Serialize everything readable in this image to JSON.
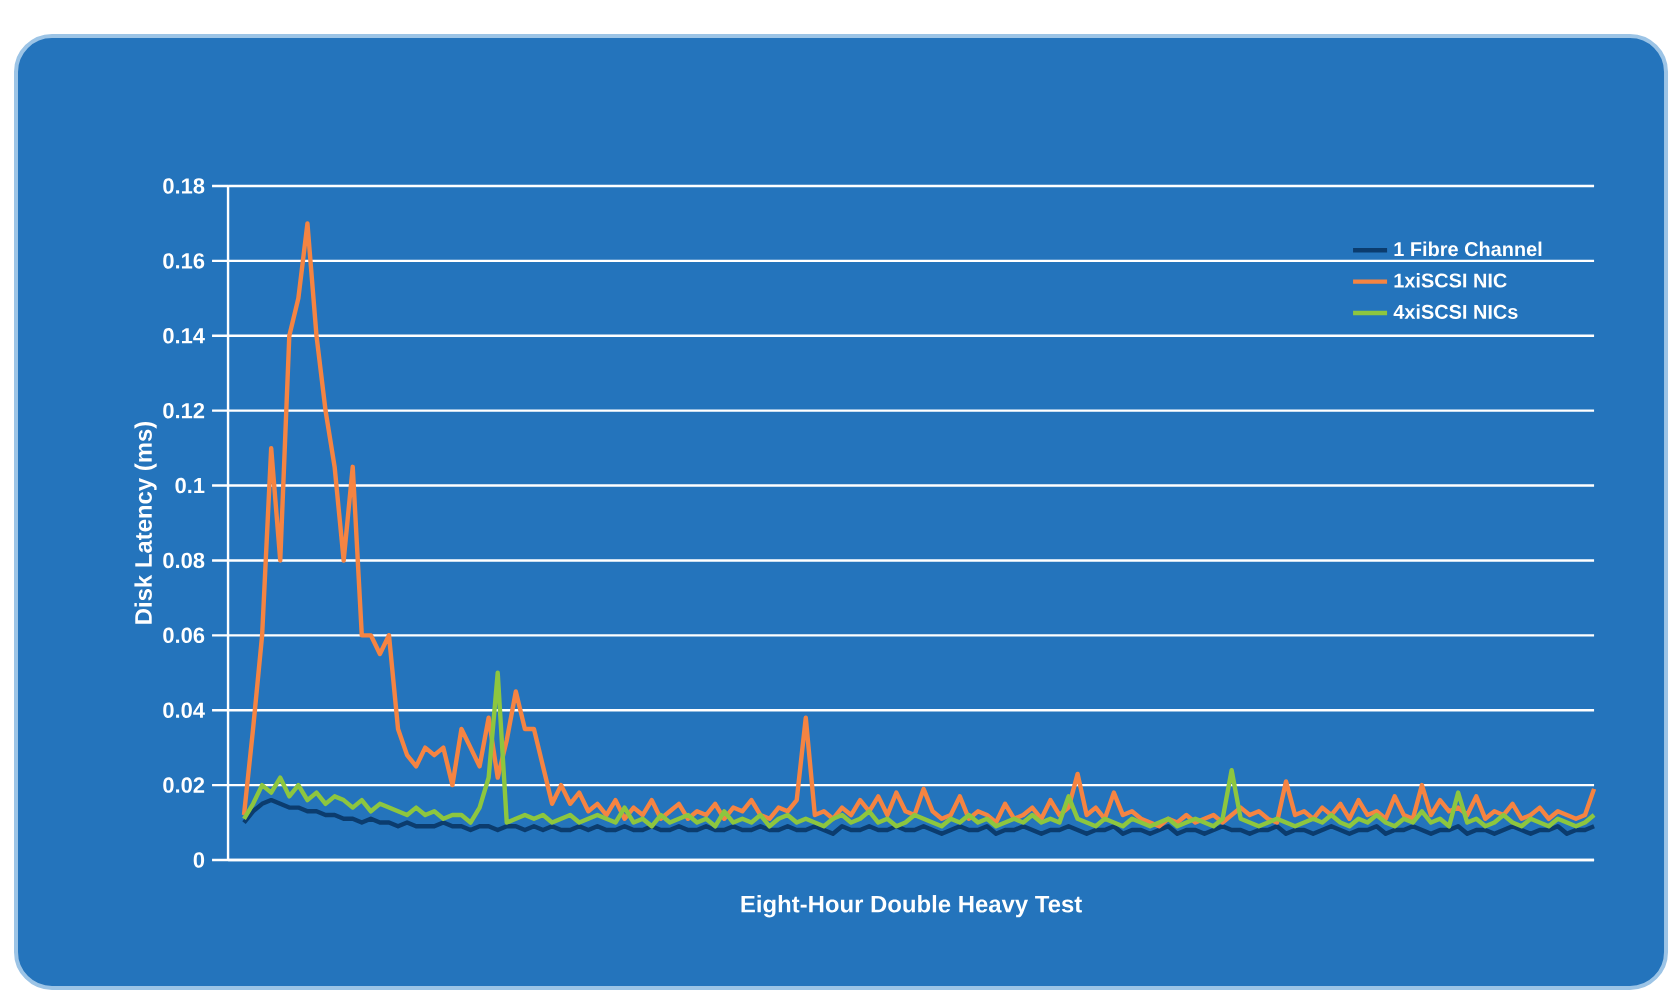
{
  "chart_data": {
    "type": "line",
    "xlabel": "Eight-Hour Double Heavy Test",
    "ylabel": "Disk Latency (ms)",
    "categories": [
      null,
      null,
      null,
      null,
      null,
      null,
      null,
      null,
      null,
      null,
      null,
      null,
      null,
      null,
      null,
      null,
      null,
      null,
      null,
      null,
      null,
      null,
      null,
      null,
      null,
      null,
      null,
      null,
      null,
      null,
      null,
      null,
      null,
      null,
      null,
      null,
      null,
      null,
      null,
      null,
      null,
      null,
      null,
      null,
      null,
      null,
      null,
      null,
      null,
      null,
      null,
      null,
      null,
      null,
      null,
      null,
      null,
      null,
      null,
      null,
      null,
      null,
      null,
      null,
      null,
      null,
      null,
      null,
      null,
      null,
      null,
      null,
      null,
      null,
      null,
      null,
      null,
      null,
      null,
      null,
      null,
      null,
      null,
      null,
      null,
      null,
      null,
      null,
      null,
      null,
      null,
      null,
      null,
      null,
      null,
      null,
      null,
      null,
      null,
      null,
      null,
      null,
      null,
      null,
      null,
      null,
      null,
      null,
      null,
      null,
      null,
      null,
      null,
      null,
      null,
      null,
      null,
      null,
      null,
      null,
      null,
      null,
      null,
      null,
      null,
      null,
      null,
      null,
      null,
      null,
      null,
      null,
      null,
      null,
      null,
      null,
      null,
      null,
      null,
      null,
      null,
      null,
      null,
      null,
      null,
      null,
      null,
      null,
      null,
      null
    ],
    "ylim": [
      0,
      0.18
    ],
    "yticks": [
      0,
      0.02,
      0.04,
      0.06,
      0.08,
      0.1,
      0.12,
      0.14,
      0.16,
      0.18
    ],
    "grid": "y",
    "legend": "top right",
    "line_style": "solid",
    "marker": "none",
    "series": [
      {
        "name": "1 Fibre Channel",
        "color": "#0b3c6e",
        "values": [
          0.01,
          0.013,
          0.015,
          0.016,
          0.015,
          0.014,
          0.014,
          0.013,
          0.013,
          0.012,
          0.012,
          0.011,
          0.011,
          0.01,
          0.011,
          0.01,
          0.01,
          0.009,
          0.01,
          0.009,
          0.009,
          0.009,
          0.01,
          0.009,
          0.009,
          0.008,
          0.009,
          0.009,
          0.008,
          0.009,
          0.009,
          0.008,
          0.009,
          0.008,
          0.009,
          0.008,
          0.008,
          0.009,
          0.008,
          0.009,
          0.008,
          0.008,
          0.009,
          0.008,
          0.008,
          0.009,
          0.008,
          0.008,
          0.009,
          0.008,
          0.008,
          0.009,
          0.008,
          0.008,
          0.009,
          0.008,
          0.008,
          0.009,
          0.008,
          0.008,
          0.009,
          0.008,
          0.008,
          0.009,
          0.008,
          0.007,
          0.009,
          0.008,
          0.008,
          0.009,
          0.008,
          0.008,
          0.009,
          0.008,
          0.008,
          0.009,
          0.008,
          0.007,
          0.008,
          0.009,
          0.008,
          0.008,
          0.009,
          0.007,
          0.008,
          0.008,
          0.009,
          0.008,
          0.007,
          0.008,
          0.008,
          0.009,
          0.008,
          0.007,
          0.008,
          0.008,
          0.009,
          0.007,
          0.008,
          0.008,
          0.007,
          0.008,
          0.009,
          0.007,
          0.008,
          0.008,
          0.007,
          0.008,
          0.009,
          0.008,
          0.008,
          0.007,
          0.008,
          0.008,
          0.009,
          0.007,
          0.008,
          0.008,
          0.007,
          0.008,
          0.009,
          0.008,
          0.007,
          0.008,
          0.008,
          0.009,
          0.007,
          0.008,
          0.008,
          0.009,
          0.008,
          0.007,
          0.008,
          0.008,
          0.009,
          0.007,
          0.008,
          0.008,
          0.007,
          0.008,
          0.009,
          0.008,
          0.007,
          0.008,
          0.008,
          0.009,
          0.007,
          0.008,
          0.008,
          0.009
        ]
      },
      {
        "name": "1xiSCSI NIC",
        "color": "#f58442",
        "values": [
          0.012,
          0.035,
          0.06,
          0.11,
          0.08,
          0.14,
          0.15,
          0.17,
          0.14,
          0.12,
          0.105,
          0.08,
          0.105,
          0.06,
          0.06,
          0.055,
          0.06,
          0.035,
          0.028,
          0.025,
          0.03,
          0.028,
          0.03,
          0.02,
          0.035,
          0.03,
          0.025,
          0.038,
          0.022,
          0.032,
          0.045,
          0.035,
          0.035,
          0.025,
          0.015,
          0.02,
          0.015,
          0.018,
          0.013,
          0.015,
          0.012,
          0.016,
          0.011,
          0.014,
          0.012,
          0.016,
          0.011,
          0.013,
          0.015,
          0.011,
          0.013,
          0.012,
          0.015,
          0.011,
          0.014,
          0.013,
          0.016,
          0.012,
          0.011,
          0.014,
          0.013,
          0.016,
          0.038,
          0.012,
          0.013,
          0.011,
          0.014,
          0.012,
          0.016,
          0.013,
          0.017,
          0.012,
          0.018,
          0.013,
          0.012,
          0.019,
          0.013,
          0.011,
          0.012,
          0.017,
          0.011,
          0.013,
          0.012,
          0.01,
          0.015,
          0.011,
          0.012,
          0.014,
          0.011,
          0.016,
          0.012,
          0.014,
          0.023,
          0.012,
          0.014,
          0.011,
          0.018,
          0.012,
          0.013,
          0.011,
          0.01,
          0.009,
          0.011,
          0.01,
          0.012,
          0.01,
          0.011,
          0.012,
          0.01,
          0.012,
          0.014,
          0.012,
          0.013,
          0.011,
          0.01,
          0.021,
          0.012,
          0.013,
          0.011,
          0.014,
          0.012,
          0.015,
          0.011,
          0.016,
          0.012,
          0.013,
          0.011,
          0.017,
          0.012,
          0.011,
          0.02,
          0.012,
          0.016,
          0.013,
          0.014,
          0.012,
          0.017,
          0.011,
          0.013,
          0.012,
          0.015,
          0.011,
          0.012,
          0.014,
          0.011,
          0.013,
          0.012,
          0.011,
          0.012,
          0.019
        ]
      },
      {
        "name": "4xiSCSI NICs",
        "color": "#8dc63f",
        "values": [
          0.011,
          0.015,
          0.02,
          0.018,
          0.022,
          0.017,
          0.02,
          0.016,
          0.018,
          0.015,
          0.017,
          0.016,
          0.014,
          0.016,
          0.013,
          0.015,
          0.014,
          0.013,
          0.012,
          0.014,
          0.012,
          0.013,
          0.011,
          0.012,
          0.012,
          0.01,
          0.014,
          0.022,
          0.05,
          0.01,
          0.011,
          0.012,
          0.011,
          0.012,
          0.01,
          0.011,
          0.012,
          0.01,
          0.011,
          0.012,
          0.011,
          0.01,
          0.014,
          0.01,
          0.011,
          0.009,
          0.012,
          0.01,
          0.011,
          0.012,
          0.01,
          0.011,
          0.009,
          0.013,
          0.01,
          0.011,
          0.01,
          0.012,
          0.009,
          0.011,
          0.012,
          0.01,
          0.011,
          0.01,
          0.009,
          0.011,
          0.012,
          0.01,
          0.011,
          0.013,
          0.01,
          0.011,
          0.009,
          0.01,
          0.012,
          0.011,
          0.01,
          0.009,
          0.011,
          0.01,
          0.012,
          0.01,
          0.011,
          0.009,
          0.01,
          0.011,
          0.01,
          0.012,
          0.01,
          0.011,
          0.01,
          0.017,
          0.011,
          0.01,
          0.009,
          0.011,
          0.01,
          0.009,
          0.011,
          0.01,
          0.009,
          0.01,
          0.011,
          0.009,
          0.01,
          0.011,
          0.01,
          0.009,
          0.011,
          0.024,
          0.011,
          0.01,
          0.009,
          0.01,
          0.011,
          0.01,
          0.009,
          0.01,
          0.011,
          0.01,
          0.012,
          0.01,
          0.009,
          0.011,
          0.01,
          0.012,
          0.01,
          0.009,
          0.011,
          0.01,
          0.013,
          0.01,
          0.011,
          0.009,
          0.018,
          0.01,
          0.011,
          0.009,
          0.01,
          0.012,
          0.01,
          0.009,
          0.011,
          0.01,
          0.009,
          0.011,
          0.01,
          0.009,
          0.01,
          0.012
        ]
      }
    ]
  }
}
